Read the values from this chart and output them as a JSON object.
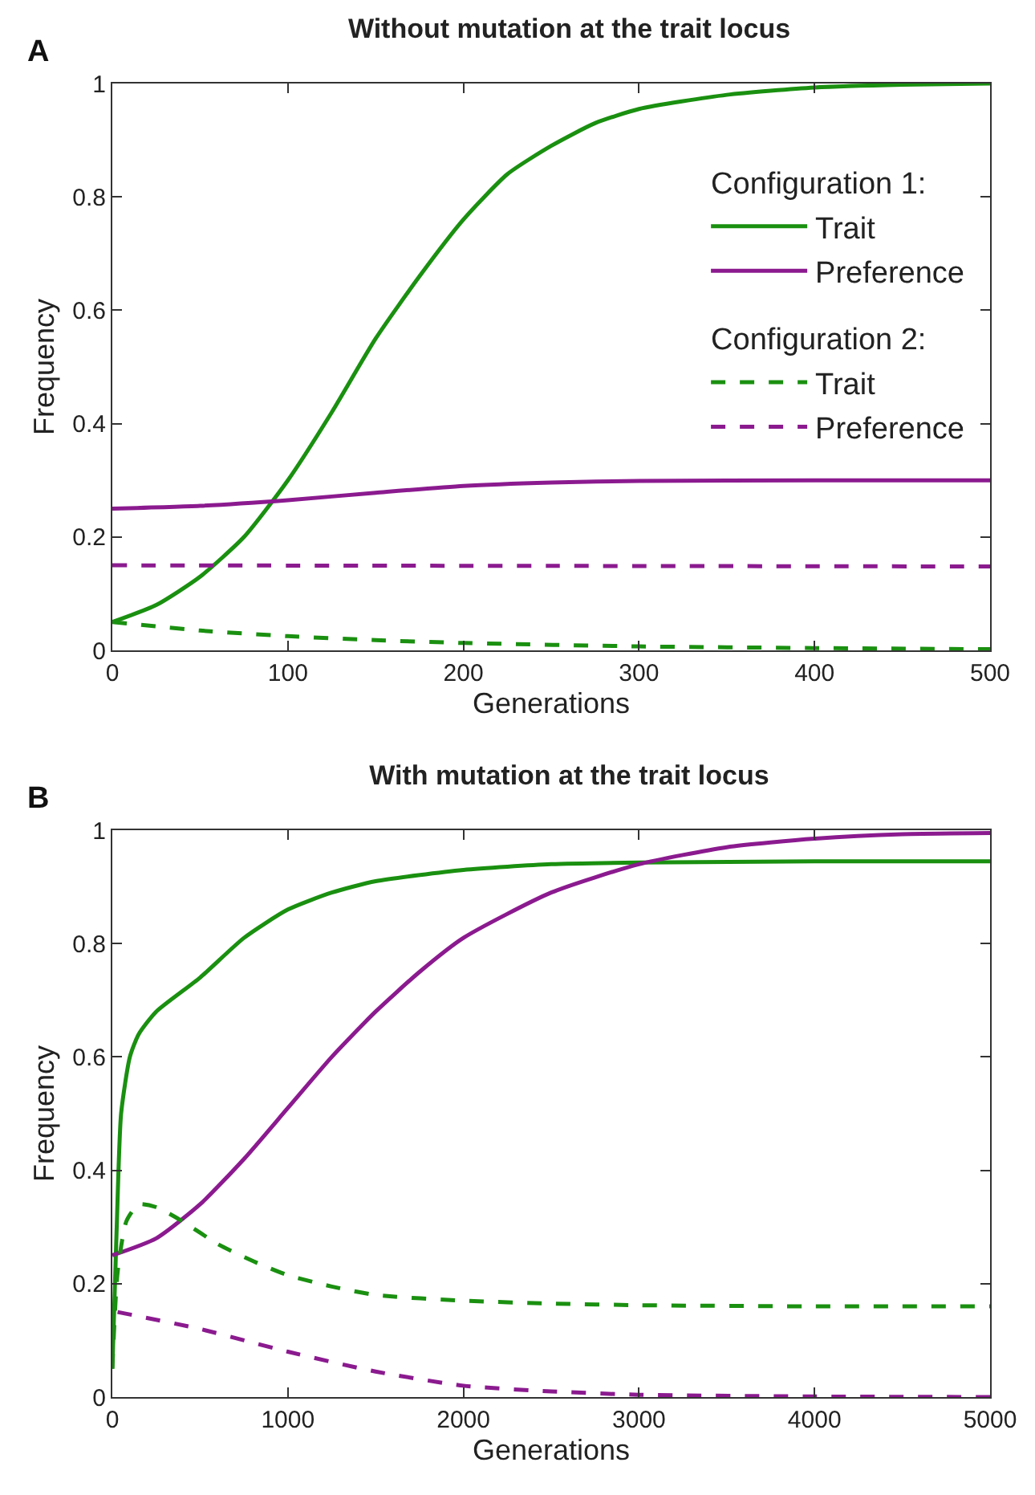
{
  "chart_data": [
    {
      "type": "line",
      "title": "Without mutation at the trait locus",
      "xlabel": "Generations",
      "ylabel": "Frequency",
      "xlim": [
        0,
        500
      ],
      "xticks": [
        0,
        100,
        200,
        300,
        400,
        500
      ],
      "ylim": [
        0,
        1
      ],
      "yticks": [
        0,
        0.2,
        0.4,
        0.6,
        0.8,
        1
      ],
      "grid": false,
      "legend": "top right",
      "marker": "none",
      "annotations": [
        "A",
        "Configuration 1:",
        "Configuration 2:"
      ],
      "series": [
        {
          "name": "Trait",
          "color": "#1a9010",
          "line_style": "solid",
          "x": [
            0,
            25,
            50,
            75,
            100,
            125,
            150,
            175,
            200,
            225,
            250,
            275,
            300,
            350,
            400,
            450,
            500
          ],
          "values": [
            0.05,
            0.08,
            0.13,
            0.2,
            0.3,
            0.42,
            0.55,
            0.66,
            0.76,
            0.84,
            0.89,
            0.93,
            0.955,
            0.98,
            0.993,
            0.998,
            1.0
          ]
        },
        {
          "name": "Preference",
          "color": "#8b1a8f",
          "line_style": "solid",
          "x": [
            0,
            50,
            100,
            150,
            200,
            250,
            300,
            400,
            500
          ],
          "values": [
            0.25,
            0.255,
            0.265,
            0.278,
            0.29,
            0.296,
            0.299,
            0.3,
            0.3
          ]
        },
        {
          "name": "Trait",
          "color": "#1a9010",
          "line_style": "dashed",
          "x": [
            0,
            50,
            100,
            150,
            200,
            300,
            400,
            500
          ],
          "values": [
            0.05,
            0.035,
            0.025,
            0.018,
            0.013,
            0.007,
            0.004,
            0.002
          ]
        },
        {
          "name": "Preference",
          "color": "#8b1a8f",
          "line_style": "dashed",
          "x": [
            0,
            250,
            500
          ],
          "values": [
            0.15,
            0.149,
            0.148
          ]
        }
      ]
    },
    {
      "type": "line",
      "title": "With mutation at the trait locus",
      "xlabel": "Generations",
      "ylabel": "Frequency",
      "xlim": [
        0,
        5000
      ],
      "xticks": [
        0,
        1000,
        2000,
        3000,
        4000,
        5000
      ],
      "ylim": [
        0,
        1
      ],
      "yticks": [
        0,
        0.2,
        0.4,
        0.6,
        0.8,
        1
      ],
      "grid": false,
      "legend": false,
      "marker": "none",
      "annotations": [
        "B"
      ],
      "series": [
        {
          "color": "#1a9010",
          "line_style": "solid",
          "x": [
            0,
            25,
            50,
            100,
            150,
            250,
            500,
            750,
            1000,
            1250,
            1500,
            2000,
            2500,
            3000,
            4000,
            5000
          ],
          "values": [
            0.05,
            0.3,
            0.5,
            0.6,
            0.64,
            0.68,
            0.74,
            0.81,
            0.86,
            0.89,
            0.91,
            0.93,
            0.94,
            0.943,
            0.945,
            0.945
          ]
        },
        {
          "color": "#8b1a8f",
          "line_style": "solid",
          "x": [
            0,
            250,
            500,
            750,
            1000,
            1250,
            1500,
            1750,
            2000,
            2500,
            3000,
            3500,
            4000,
            4500,
            5000
          ],
          "values": [
            0.25,
            0.28,
            0.34,
            0.42,
            0.51,
            0.6,
            0.68,
            0.75,
            0.81,
            0.89,
            0.94,
            0.97,
            0.985,
            0.993,
            0.995
          ]
        },
        {
          "color": "#1a9010",
          "line_style": "dashed",
          "x": [
            0,
            30,
            80,
            150,
            250,
            400,
            600,
            800,
            1000,
            1250,
            1500,
            2000,
            2500,
            3000,
            4000,
            5000
          ],
          "values": [
            0.05,
            0.22,
            0.31,
            0.34,
            0.335,
            0.31,
            0.27,
            0.24,
            0.215,
            0.195,
            0.18,
            0.17,
            0.165,
            0.162,
            0.16,
            0.16
          ]
        },
        {
          "color": "#8b1a8f",
          "line_style": "dashed",
          "x": [
            30,
            500,
            1000,
            1500,
            2000,
            2500,
            3000,
            4000,
            5000
          ],
          "values": [
            0.15,
            0.12,
            0.08,
            0.045,
            0.02,
            0.01,
            0.004,
            0.001,
            0
          ]
        }
      ]
    }
  ]
}
